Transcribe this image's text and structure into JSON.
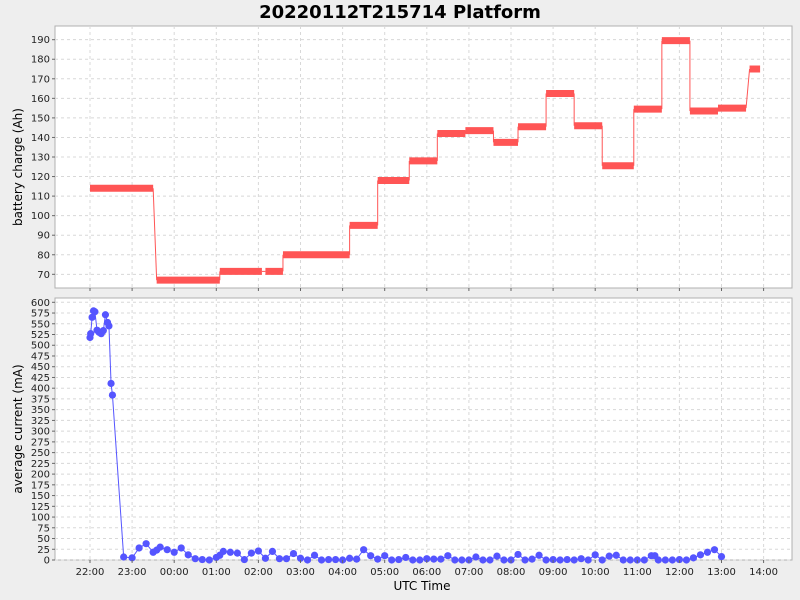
{
  "chart_data": {
    "type": "combined-xy",
    "title": "20220112T215714 Platform",
    "xlabel": "UTC Time",
    "x_ticks": [
      "22:00",
      "23:00",
      "00:00",
      "01:00",
      "02:00",
      "03:00",
      "04:00",
      "05:00",
      "06:00",
      "07:00",
      "08:00",
      "09:00",
      "10:00",
      "11:00",
      "12:00",
      "13:00",
      "14:00"
    ],
    "grid": true,
    "colors": {
      "battery": "#ff5555",
      "current": "#5555ff",
      "plot_bg": "#ffffff",
      "grid": "#d8d8d8",
      "page_bg": "#eeeeee"
    },
    "battery": {
      "type": "step-line",
      "ylabel": "battery charge (Ah)",
      "ylim": [
        63,
        197
      ],
      "yticks": [
        70,
        80,
        90,
        100,
        110,
        120,
        130,
        140,
        150,
        160,
        170,
        180,
        190
      ],
      "segments": [
        {
          "x_start": "22:00",
          "x_end": "23:30",
          "value": 114
        },
        {
          "x_start": "23:35",
          "x_end": "01:05",
          "value": 67
        },
        {
          "x_start": "01:05",
          "x_end": "02:05",
          "value": 71.5
        },
        {
          "x_start": "02:10",
          "x_end": "02:35",
          "value": 71.5
        },
        {
          "x_start": "02:35",
          "x_end": "04:10",
          "value": 80
        },
        {
          "x_start": "04:10",
          "x_end": "04:50",
          "value": 95
        },
        {
          "x_start": "04:50",
          "x_end": "05:35",
          "value": 118
        },
        {
          "x_start": "05:35",
          "x_end": "06:15",
          "value": 128
        },
        {
          "x_start": "06:15",
          "x_end": "06:55",
          "value": 142
        },
        {
          "x_start": "06:55",
          "x_end": "07:35",
          "value": 143.5
        },
        {
          "x_start": "07:35",
          "x_end": "08:10",
          "value": 137.5
        },
        {
          "x_start": "08:10",
          "x_end": "08:50",
          "value": 145.5
        },
        {
          "x_start": "08:50",
          "x_end": "09:30",
          "value": 162.5
        },
        {
          "x_start": "09:30",
          "x_end": "10:10",
          "value": 146
        },
        {
          "x_start": "10:10",
          "x_end": "10:55",
          "value": 125.5
        },
        {
          "x_start": "10:55",
          "x_end": "11:35",
          "value": 154.5
        },
        {
          "x_start": "11:35",
          "x_end": "12:15",
          "value": 189.5
        },
        {
          "x_start": "12:15",
          "x_end": "12:55",
          "value": 153.5
        },
        {
          "x_start": "12:55",
          "x_end": "13:35",
          "value": 155
        },
        {
          "x_start": "13:40",
          "x_end": "13:55",
          "value": 175
        }
      ]
    },
    "current": {
      "type": "line-scatter",
      "ylabel": "average current (mA)",
      "ylim": [
        0,
        610
      ],
      "yticks": [
        0,
        25,
        50,
        75,
        100,
        125,
        150,
        175,
        200,
        225,
        250,
        275,
        300,
        325,
        350,
        375,
        400,
        425,
        450,
        475,
        500,
        525,
        550,
        575,
        600
      ],
      "points": [
        [
          "22:00",
          518
        ],
        [
          "22:01",
          527
        ],
        [
          "22:03",
          565
        ],
        [
          "22:05",
          580
        ],
        [
          "22:07",
          578
        ],
        [
          "22:10",
          535
        ],
        [
          "22:13",
          530
        ],
        [
          "22:16",
          527
        ],
        [
          "22:19",
          534
        ],
        [
          "22:22",
          571
        ],
        [
          "22:25",
          553
        ],
        [
          "22:27",
          545
        ],
        [
          "22:30",
          411
        ],
        [
          "22:32",
          384
        ],
        [
          "22:48",
          7
        ],
        [
          "23:00",
          5
        ],
        [
          "23:10",
          28
        ],
        [
          "23:20",
          38
        ],
        [
          "23:30",
          18
        ],
        [
          "23:35",
          23
        ],
        [
          "23:40",
          30
        ],
        [
          "23:50",
          24
        ],
        [
          "24:00",
          18
        ],
        [
          "24:10",
          28
        ],
        [
          "24:20",
          12
        ],
        [
          "24:30",
          3
        ],
        [
          "24:40",
          1
        ],
        [
          "24:50",
          0
        ],
        [
          "25:00",
          6
        ],
        [
          "25:05",
          11
        ],
        [
          "25:10",
          20
        ],
        [
          "25:20",
          18
        ],
        [
          "25:30",
          16
        ],
        [
          "25:40",
          1
        ],
        [
          "25:50",
          16
        ],
        [
          "26:00",
          21
        ],
        [
          "26:10",
          4
        ],
        [
          "26:20",
          20
        ],
        [
          "26:30",
          3
        ],
        [
          "26:40",
          3
        ],
        [
          "26:50",
          15
        ],
        [
          "27:00",
          4
        ],
        [
          "27:10",
          0
        ],
        [
          "27:20",
          11
        ],
        [
          "27:30",
          0
        ],
        [
          "27:40",
          1
        ],
        [
          "27:50",
          1
        ],
        [
          "28:00",
          0
        ],
        [
          "28:10",
          4
        ],
        [
          "28:20",
          2
        ],
        [
          "28:30",
          24
        ],
        [
          "28:40",
          10
        ],
        [
          "28:50",
          2
        ],
        [
          "29:00",
          10
        ],
        [
          "29:10",
          0
        ],
        [
          "29:20",
          1
        ],
        [
          "29:30",
          6
        ],
        [
          "29:40",
          0
        ],
        [
          "29:50",
          0
        ],
        [
          "30:00",
          3
        ],
        [
          "30:10",
          2
        ],
        [
          "30:20",
          2
        ],
        [
          "30:30",
          10
        ],
        [
          "30:40",
          0
        ],
        [
          "30:50",
          0
        ],
        [
          "31:00",
          0
        ],
        [
          "31:10",
          7
        ],
        [
          "31:20",
          0
        ],
        [
          "31:30",
          0
        ],
        [
          "31:40",
          9
        ],
        [
          "31:50",
          0
        ],
        [
          "32:00",
          0
        ],
        [
          "32:10",
          13
        ],
        [
          "32:20",
          0
        ],
        [
          "32:30",
          2
        ],
        [
          "32:40",
          11
        ],
        [
          "32:50",
          0
        ],
        [
          "33:00",
          1
        ],
        [
          "33:10",
          0
        ],
        [
          "33:20",
          1
        ],
        [
          "33:30",
          0
        ],
        [
          "33:40",
          3
        ],
        [
          "33:50",
          0
        ],
        [
          "34:00",
          12
        ],
        [
          "34:10",
          0
        ],
        [
          "34:20",
          9
        ],
        [
          "34:30",
          11
        ],
        [
          "34:40",
          0
        ],
        [
          "34:50",
          0
        ],
        [
          "35:00",
          0
        ],
        [
          "35:10",
          0
        ],
        [
          "35:20",
          10
        ],
        [
          "35:25",
          10
        ],
        [
          "35:30",
          0
        ],
        [
          "35:40",
          0
        ],
        [
          "35:50",
          0
        ],
        [
          "36:00",
          1
        ],
        [
          "36:10",
          0
        ],
        [
          "36:20",
          5
        ],
        [
          "36:30",
          12
        ],
        [
          "36:40",
          18
        ],
        [
          "36:50",
          24
        ],
        [
          "37:00",
          8
        ]
      ]
    }
  }
}
